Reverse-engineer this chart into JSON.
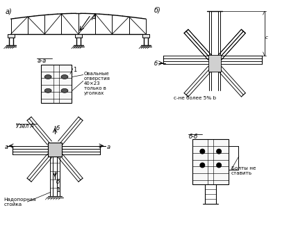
{
  "bg_color": "#ffffff",
  "label_a": "а)",
  "label_b": "б)",
  "label_aa": "а-а",
  "label_bb": "б-б",
  "label_uzel": "Узел А",
  "label_nadopornaya": "Надопорная\nстойка",
  "label_oval": "Овальные\nотверстия\n40×23\nтолько в\nуголках",
  "label_bolty": "Болты не\nставить",
  "label_c": "с-не более 5% b",
  "label_A_arrow": "A",
  "label_1a": "1",
  "label_1b": "1",
  "label_b_cut": "б",
  "label_a_cut": "а"
}
